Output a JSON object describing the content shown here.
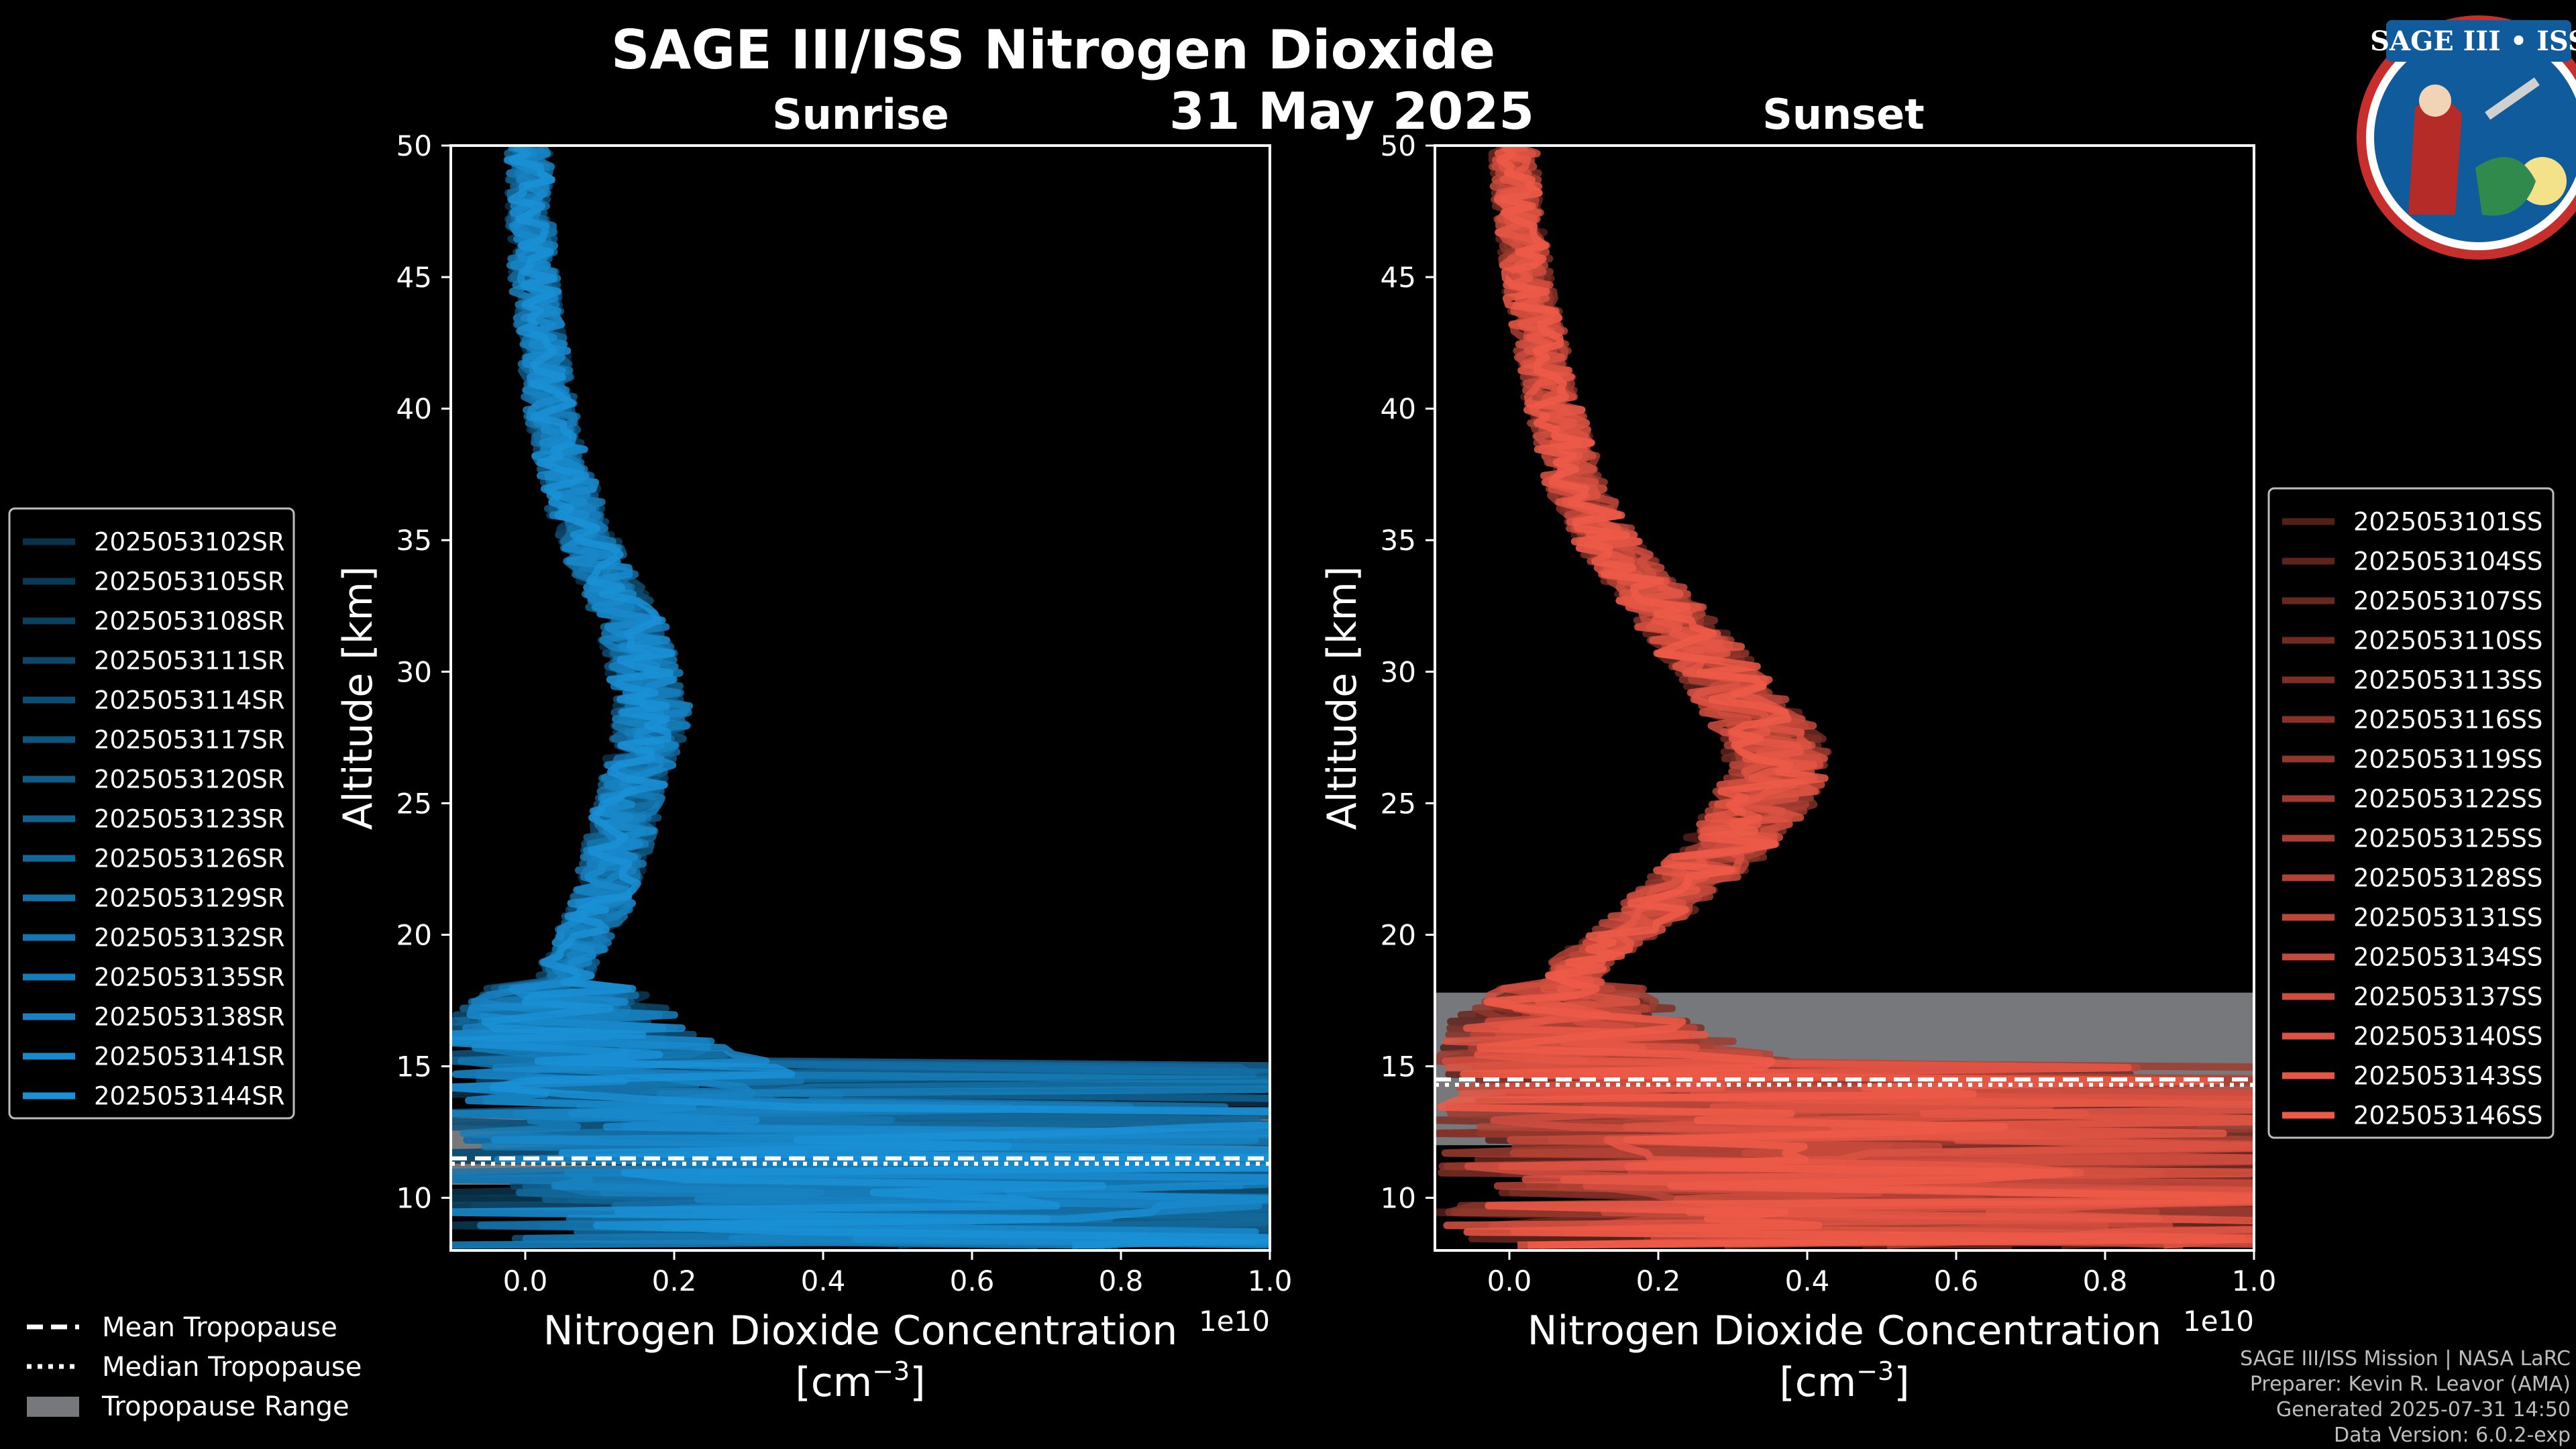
{
  "title": "SAGE III/ISS Nitrogen Dioxide",
  "date": "31 May 2025",
  "logo": {
    "text": "SAGE III • ISS"
  },
  "colors": {
    "sunrise": "#1a90d6",
    "sunset": "#ef5a48",
    "tropo_range": "#77787b",
    "background": "#000000"
  },
  "chart_data": [
    {
      "type": "line",
      "panel": "Sunrise",
      "xlabel_line1": "Nitrogen Dioxide Concentration",
      "xlabel_line2": "[cm",
      "xlabel_exp": "−3",
      "xlabel_close": "]",
      "ylabel": "Altitude [km]",
      "x_offset_label": "1e10",
      "xlim": [
        -0.1,
        1.0
      ],
      "ylim": [
        8,
        50
      ],
      "xticks": [
        0.0,
        0.2,
        0.4,
        0.6,
        0.8,
        1.0
      ],
      "xtick_labels": [
        "0.0",
        "0.2",
        "0.4",
        "0.6",
        "0.8",
        "1.0"
      ],
      "yticks": [
        10,
        15,
        20,
        25,
        30,
        35,
        40,
        45,
        50
      ],
      "ytick_labels": [
        "10",
        "15",
        "20",
        "25",
        "30",
        "35",
        "40",
        "45",
        "50"
      ],
      "profile_altitudes": [
        8.5,
        9,
        10,
        11,
        12,
        13,
        14,
        15,
        16,
        17,
        18,
        19,
        20,
        21,
        22,
        23,
        24,
        25,
        26,
        27,
        28,
        29,
        30,
        31,
        32,
        33,
        34,
        35,
        36,
        37,
        38,
        39,
        40,
        41,
        42,
        43,
        44,
        45,
        46,
        47,
        48,
        49,
        50
      ],
      "profile_mean_values": [
        0.45,
        0.4,
        0.35,
        0.3,
        0.26,
        0.2,
        0.15,
        0.1,
        0.06,
        0.05,
        0.05,
        0.06,
        0.08,
        0.1,
        0.11,
        0.12,
        0.13,
        0.14,
        0.15,
        0.16,
        0.17,
        0.17,
        0.16,
        0.15,
        0.14,
        0.12,
        0.1,
        0.085,
        0.07,
        0.06,
        0.05,
        0.04,
        0.035,
        0.03,
        0.025,
        0.02,
        0.015,
        0.012,
        0.01,
        0.008,
        0.006,
        0.005,
        0.004
      ],
      "tropopause": {
        "range": [
          10.5,
          13.3
        ],
        "mean": 11.5,
        "median": 11.5
      },
      "series": [
        "2025053102SR",
        "2025053105SR",
        "2025053108SR",
        "2025053111SR",
        "2025053114SR",
        "2025053117SR",
        "2025053120SR",
        "2025053123SR",
        "2025053126SR",
        "2025053129SR",
        "2025053132SR",
        "2025053135SR",
        "2025053138SR",
        "2025053141SR",
        "2025053144SR"
      ]
    },
    {
      "type": "line",
      "panel": "Sunset",
      "xlabel_line1": "Nitrogen Dioxide Concentration",
      "xlabel_line2": "[cm",
      "xlabel_exp": "−3",
      "xlabel_close": "]",
      "ylabel": "Altitude [km]",
      "x_offset_label": "1e10",
      "xlim": [
        -0.1,
        1.0
      ],
      "ylim": [
        8,
        50
      ],
      "xticks": [
        0.0,
        0.2,
        0.4,
        0.6,
        0.8,
        1.0
      ],
      "xtick_labels": [
        "0.0",
        "0.2",
        "0.4",
        "0.6",
        "0.8",
        "1.0"
      ],
      "yticks": [
        10,
        15,
        20,
        25,
        30,
        35,
        40,
        45,
        50
      ],
      "ytick_labels": [
        "10",
        "15",
        "20",
        "25",
        "30",
        "35",
        "40",
        "45",
        "50"
      ],
      "profile_altitudes": [
        8.5,
        9,
        10,
        11,
        12,
        13,
        14,
        15,
        16,
        17,
        18,
        19,
        20,
        21,
        22,
        23,
        24,
        25,
        26,
        27,
        28,
        29,
        30,
        31,
        32,
        33,
        34,
        35,
        36,
        37,
        38,
        39,
        40,
        41,
        42,
        43,
        44,
        45,
        46,
        47,
        48,
        49,
        50
      ],
      "profile_mean_values": [
        0.5,
        0.45,
        0.4,
        0.35,
        0.3,
        0.25,
        0.2,
        0.15,
        0.1,
        0.08,
        0.08,
        0.1,
        0.15,
        0.2,
        0.24,
        0.28,
        0.31,
        0.34,
        0.36,
        0.36,
        0.34,
        0.31,
        0.28,
        0.25,
        0.22,
        0.19,
        0.16,
        0.13,
        0.11,
        0.09,
        0.08,
        0.07,
        0.06,
        0.05,
        0.045,
        0.04,
        0.03,
        0.025,
        0.02,
        0.015,
        0.01,
        0.008,
        0.006
      ],
      "tropopause": {
        "range": [
          12.0,
          17.8
        ],
        "mean": 14.5,
        "median": 14.5
      },
      "series": [
        "2025053101SS",
        "2025053104SS",
        "2025053107SS",
        "2025053110SS",
        "2025053113SS",
        "2025053116SS",
        "2025053119SS",
        "2025053122SS",
        "2025053125SS",
        "2025053128SS",
        "2025053131SS",
        "2025053134SS",
        "2025053137SS",
        "2025053140SS",
        "2025053143SS",
        "2025053146SS"
      ]
    }
  ],
  "bottom_legend": {
    "mean": "Mean Tropopause",
    "median": "Median Tropopause",
    "range": "Tropopause Range"
  },
  "credits": [
    "SAGE III/ISS Mission | NASA LaRC",
    "Preparer: Kevin R. Leavor (AMA)",
    "Generated 2025-07-31 14:50",
    "Data Version: 6.0.2-exp"
  ]
}
